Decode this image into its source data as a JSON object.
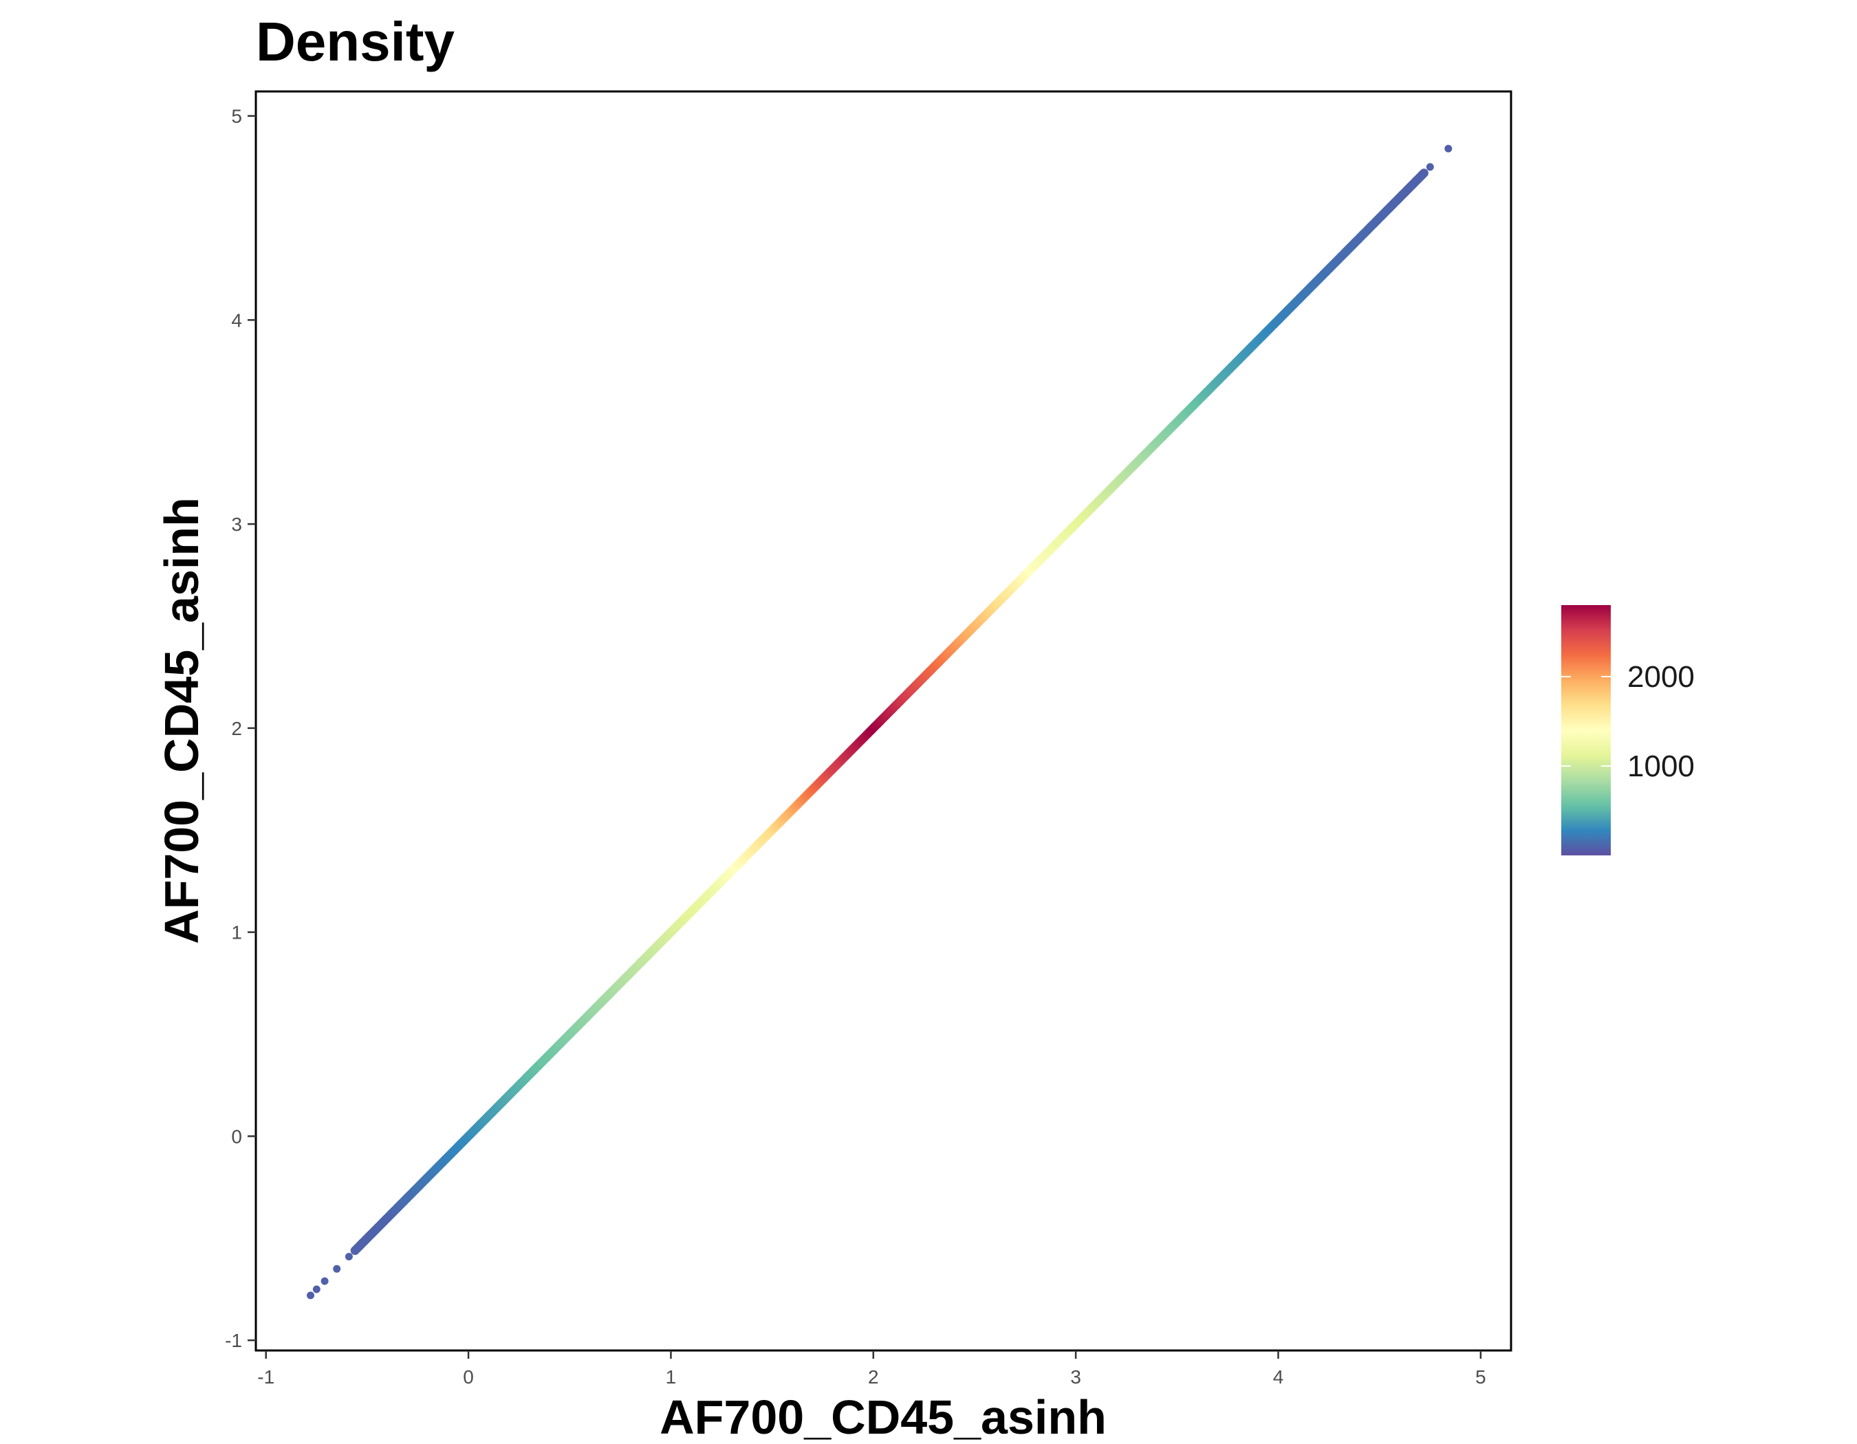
{
  "chart_data": {
    "type": "scatter",
    "title": "Density",
    "xlabel": "AF700_CD45_asinh",
    "ylabel": "AF700_CD45_asinh",
    "xlim": [
      -1.05,
      5.15
    ],
    "ylim": [
      -1.05,
      5.12
    ],
    "x_ticks": [
      -1,
      0,
      1,
      2,
      3,
      4,
      5
    ],
    "y_ticks": [
      -1,
      0,
      1,
      2,
      3,
      4,
      5
    ],
    "x_tick_labels": [
      "-1",
      "0",
      "1",
      "2",
      "3",
      "4",
      "5"
    ],
    "y_tick_labels": [
      "-1",
      "0",
      "1",
      "2",
      "3",
      "4",
      "5"
    ],
    "grid": false,
    "point_color_scale": "density",
    "relationship": "y = x",
    "x_range_of_points": [
      -0.78,
      4.84
    ],
    "density_profile": {
      "x": [
        -0.78,
        -0.4,
        -0.2,
        0.0,
        0.4,
        0.8,
        1.2,
        1.5,
        1.8,
        2.0,
        2.2,
        2.5,
        2.8,
        3.0,
        3.3,
        3.7,
        4.0,
        4.3,
        4.6,
        4.84
      ],
      "density": [
        80,
        100,
        200,
        300,
        600,
        900,
        1200,
        1700,
        2500,
        2800,
        2450,
        1900,
        1350,
        1150,
        850,
        450,
        250,
        150,
        100,
        80
      ]
    },
    "legend": {
      "placement": "right",
      "min": 0,
      "max": 2800,
      "tick_values": [
        1000,
        2000
      ],
      "tick_labels": [
        "1000",
        "2000"
      ],
      "colors": [
        "#5e4fa2",
        "#3288bd",
        "#66c2a5",
        "#abdda4",
        "#e6f598",
        "#ffffbf",
        "#fee08b",
        "#fdae61",
        "#f46d43",
        "#d53e4f",
        "#9e0142"
      ]
    }
  }
}
